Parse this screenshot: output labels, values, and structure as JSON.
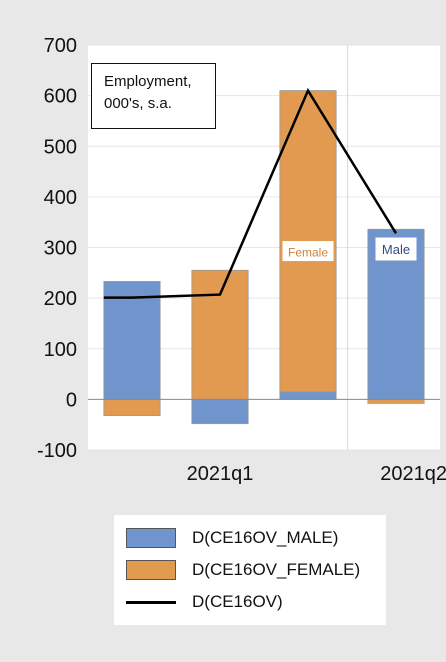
{
  "colors": {
    "male": "#7094cc",
    "female": "#e19a4f",
    "line": "#000000",
    "grid": "#e6e6e6"
  },
  "annotation": {
    "line1": "Employment,",
    "line2": "000's, s.a.",
    "female_tag": "Female",
    "male_tag": "Male"
  },
  "legend": {
    "male": "D(CE16OV_MALE)",
    "female": "D(CE16OV_FEMALE)",
    "total": "D(CE16OV)"
  },
  "chart_data": {
    "type": "bar",
    "stacked": true,
    "x_tick_labels": [
      "2021q1",
      "2021q2"
    ],
    "periods": 4,
    "ylim": [
      -100,
      700
    ],
    "yticks": [
      -100,
      0,
      100,
      200,
      300,
      400,
      500,
      600,
      700
    ],
    "grid": true,
    "legend_position": "bottom",
    "series": [
      {
        "name": "D(CE16OV_MALE)",
        "kind": "bar",
        "values": [
          233,
          -48,
          15,
          336
        ]
      },
      {
        "name": "D(CE16OV_FEMALE)",
        "kind": "bar",
        "values": [
          -32,
          255,
          595,
          -8
        ]
      },
      {
        "name": "D(CE16OV)",
        "kind": "line",
        "values": [
          201,
          207,
          610,
          328
        ]
      }
    ]
  }
}
